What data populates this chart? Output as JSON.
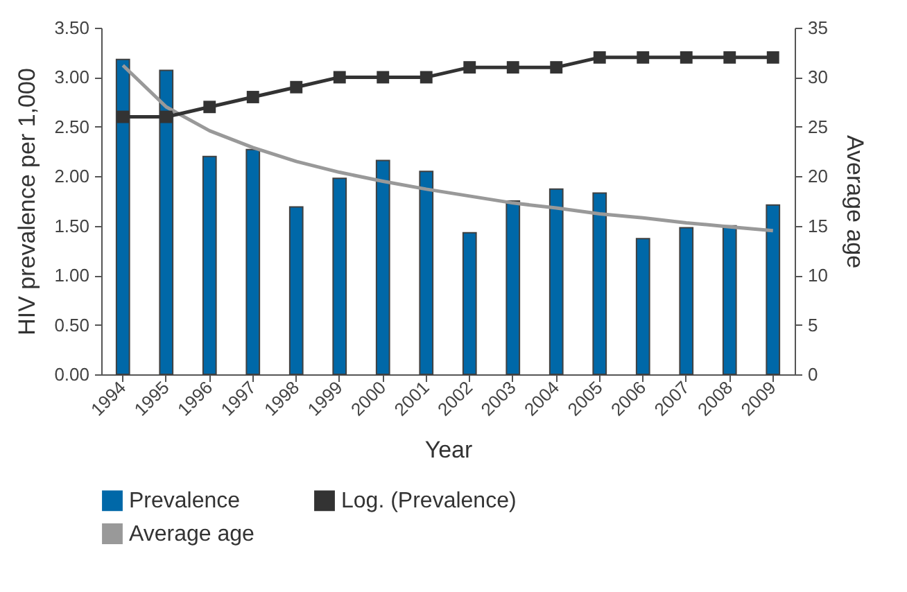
{
  "chart_data": {
    "type": "bar",
    "xlabel": "Year",
    "ylabel": "HIV prevalence per 1,000",
    "y2label": "Average age",
    "categories": [
      "1994",
      "1995",
      "1996",
      "1997",
      "1998",
      "1999",
      "2000",
      "2001",
      "2002",
      "2003",
      "2004",
      "2005",
      "2006",
      "2007",
      "2008",
      "2009"
    ],
    "series": [
      {
        "name": "Prevalence",
        "color": "#0068a8",
        "values": [
          3.18,
          3.07,
          2.2,
          2.27,
          1.69,
          1.98,
          2.16,
          2.05,
          1.43,
          1.75,
          1.87,
          1.83,
          1.37,
          1.48,
          1.5,
          1.71
        ]
      },
      {
        "name": "Log. (Prevalence)",
        "type": "line",
        "axis": "y2",
        "marker": "square",
        "color": "#333333",
        "values": [
          26,
          26,
          27,
          28,
          29,
          30,
          30,
          30,
          31,
          31,
          31,
          32,
          32,
          32,
          32,
          32
        ]
      },
      {
        "name": "Average age",
        "type": "line",
        "marker": "none",
        "color": "#999999",
        "values": [
          3.12,
          2.7,
          2.46,
          2.29,
          2.15,
          2.04,
          1.95,
          1.87,
          1.8,
          1.73,
          1.68,
          1.62,
          1.58,
          1.53,
          1.49,
          1.45
        ]
      }
    ],
    "ylim": [
      0,
      3.5
    ],
    "yticks": [
      {
        "value": 0,
        "label": "0.00"
      },
      {
        "value": 0.5,
        "label": "0.50"
      },
      {
        "value": 1,
        "label": "1.00"
      },
      {
        "value": 1.5,
        "label": "1.50"
      },
      {
        "value": 2,
        "label": "2.00"
      },
      {
        "value": 2.5,
        "label": "2.50"
      },
      {
        "value": 3,
        "label": "3.00"
      },
      {
        "value": 3.5,
        "label": "3.50"
      }
    ],
    "y2lim": [
      0,
      35
    ],
    "y2ticks": [
      0,
      5,
      10,
      15,
      20,
      25,
      30,
      35
    ],
    "grid": false,
    "legend": "bottom"
  }
}
